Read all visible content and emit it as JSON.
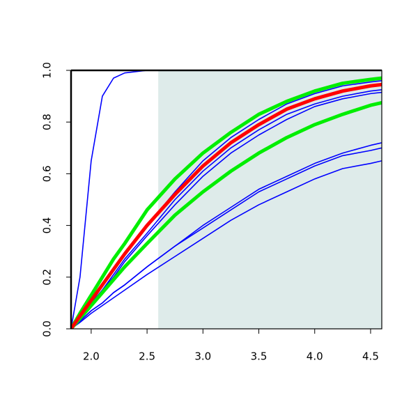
{
  "chart_data": {
    "type": "line",
    "x": [
      1.82,
      1.9,
      2.0,
      2.1,
      2.2,
      2.3,
      2.5,
      2.75,
      3.0,
      3.25,
      3.5,
      3.75,
      4.0,
      4.25,
      4.5,
      4.6
    ],
    "xlim": [
      1.82,
      4.6
    ],
    "ylim": [
      0,
      1
    ],
    "xticks": [
      {
        "value": 2,
        "label": "2.0"
      },
      2.5,
      {
        "value": 3,
        "label": "3.0"
      },
      3.5,
      {
        "value": 4,
        "label": "4.0"
      },
      4.5
    ],
    "yticks": [
      {
        "value": 0,
        "label": "0.0"
      },
      0.2,
      0.4,
      0.6,
      0.8,
      {
        "value": 1,
        "label": "1.0"
      }
    ],
    "grid": false,
    "shaded_region": {
      "xlim": [
        2.6,
        4.6
      ],
      "ylim": [
        0,
        1
      ],
      "color": "#deebea"
    },
    "series": [
      {
        "color": "#0000ff",
        "values": [
          0,
          0.2,
          0.65,
          0.9,
          0.97,
          0.99,
          1,
          1,
          1,
          1,
          1,
          1,
          1,
          1,
          1,
          1
        ]
      },
      {
        "color": "#0000ff",
        "values": [
          0,
          0.03,
          0.07,
          0.1,
          0.14,
          0.17,
          0.24,
          0.32,
          0.4,
          0.47,
          0.54,
          0.59,
          0.64,
          0.68,
          0.71,
          0.72
        ]
      },
      {
        "color": "#0000ff",
        "values": [
          0,
          0.03,
          0.07,
          0.1,
          0.14,
          0.17,
          0.24,
          0.32,
          0.39,
          0.46,
          0.53,
          0.58,
          0.63,
          0.67,
          0.69,
          0.7
        ]
      },
      {
        "color": "#0000ff",
        "values": [
          0,
          0.025,
          0.06,
          0.09,
          0.12,
          0.15,
          0.21,
          0.28,
          0.35,
          0.42,
          0.48,
          0.53,
          0.58,
          0.62,
          0.64,
          0.65
        ]
      },
      {
        "color": "#0000ff",
        "values": [
          0,
          0.04,
          0.1,
          0.15,
          0.21,
          0.27,
          0.37,
          0.5,
          0.61,
          0.7,
          0.77,
          0.83,
          0.87,
          0.9,
          0.92,
          0.925
        ]
      },
      {
        "color": "#0000ff",
        "values": [
          0,
          0.04,
          0.09,
          0.15,
          0.2,
          0.26,
          0.36,
          0.48,
          0.59,
          0.68,
          0.75,
          0.81,
          0.86,
          0.89,
          0.91,
          0.915
        ]
      },
      {
        "color": "#00ee00",
        "values": [
          0,
          0.06,
          0.13,
          0.2,
          0.27,
          0.33,
          0.46,
          0.58,
          0.68,
          0.76,
          0.83,
          0.88,
          0.92,
          0.95,
          0.965,
          0.97
        ]
      },
      {
        "color": "#00ee00",
        "values": [
          0,
          0.04,
          0.09,
          0.14,
          0.19,
          0.24,
          0.33,
          0.44,
          0.53,
          0.61,
          0.68,
          0.74,
          0.79,
          0.83,
          0.865,
          0.875
        ]
      },
      {
        "color": "#0000ff",
        "values": [
          0,
          0.05,
          0.11,
          0.17,
          0.23,
          0.29,
          0.4,
          0.53,
          0.65,
          0.74,
          0.81,
          0.87,
          0.91,
          0.94,
          0.955,
          0.96
        ]
      },
      {
        "color": "#ff0000",
        "values": [
          0,
          0.05,
          0.11,
          0.17,
          0.23,
          0.29,
          0.4,
          0.52,
          0.63,
          0.72,
          0.79,
          0.85,
          0.89,
          0.92,
          0.94,
          0.945
        ]
      }
    ]
  }
}
